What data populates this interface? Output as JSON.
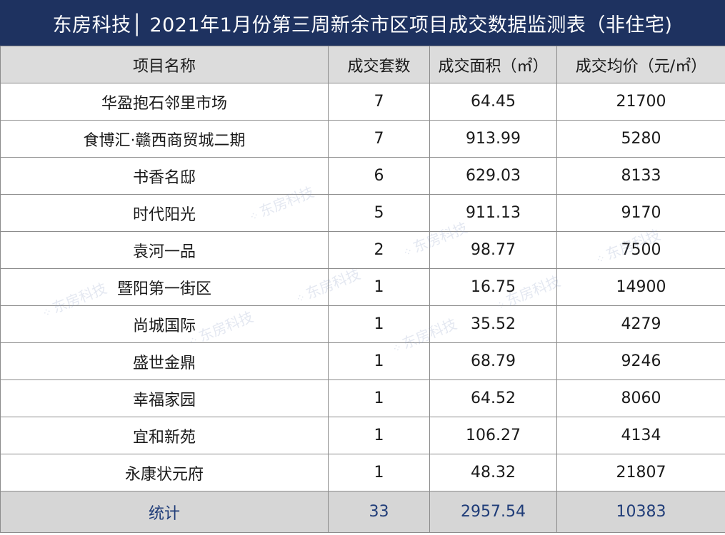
{
  "title": "东房科技│ 2021年1月份第三周新余市区项目成交数据监测表（非住宅)",
  "watermark": "东房科技",
  "table": {
    "headers": [
      "项目名称",
      "成交套数",
      "成交面积（㎡）",
      "成交均价（元/㎡）"
    ],
    "rows": [
      [
        "华盈抱石邻里市场",
        "7",
        "64.45",
        "21700"
      ],
      [
        "食博汇·赣西商贸城二期",
        "7",
        "913.99",
        "5280"
      ],
      [
        "书香名邸",
        "6",
        "629.03",
        "8133"
      ],
      [
        "时代阳光",
        "5",
        "911.13",
        "9170"
      ],
      [
        "袁河一品",
        "2",
        "98.77",
        "7500"
      ],
      [
        "暨阳第一街区",
        "1",
        "16.75",
        "14900"
      ],
      [
        "尚城国际",
        "1",
        "35.52",
        "4279"
      ],
      [
        "盛世金鼎",
        "1",
        "68.79",
        "9246"
      ],
      [
        "幸福家园",
        "1",
        "64.52",
        "8060"
      ],
      [
        "宜和新苑",
        "1",
        "106.27",
        "4134"
      ],
      [
        "永康状元府",
        "1",
        "48.32",
        "21807"
      ]
    ],
    "total": [
      "统计",
      "33",
      "2957.54",
      "10383"
    ]
  },
  "colors": {
    "title_bg": "#1e3260",
    "header_bg": "#dcdcdc",
    "total_text": "#1f3c78"
  }
}
